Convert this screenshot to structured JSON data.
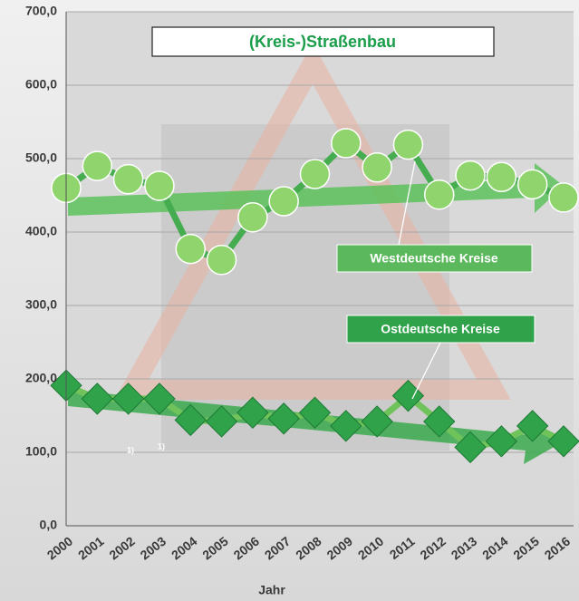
{
  "chart_data": {
    "type": "line",
    "title": "(Kreis-)Straßenbau",
    "x_label": "Jahr",
    "categories": [
      "2000",
      "2001",
      "2002",
      "2003",
      "2004",
      "2005",
      "2006",
      "2007",
      "2008",
      "2009",
      "2010",
      "2011",
      "2012",
      "2013",
      "2014",
      "2015",
      "2016"
    ],
    "series": [
      {
        "name": "Westdeutsche Kreise",
        "color": "#8fd46c",
        "line_color": "#45ad4f",
        "marker": "circle",
        "values": [
          460,
          490,
          472,
          463,
          377,
          362,
          420,
          442,
          479,
          521,
          488,
          519,
          451,
          477,
          475,
          465,
          447
        ]
      },
      {
        "name": "Ostdeutsche Kreise",
        "color": "#2fa24a",
        "line_color": "#6fc35a",
        "marker": "diamond",
        "values": [
          191,
          173,
          173,
          173,
          144,
          142,
          154,
          146,
          154,
          136,
          142,
          177,
          142,
          107,
          115,
          136,
          115
        ]
      }
    ],
    "ylim": [
      0,
      700
    ],
    "yticks": [
      {
        "value": 0,
        "label": "0,0"
      },
      {
        "value": 100,
        "label": "100,0"
      },
      {
        "value": 200,
        "label": "200,0"
      },
      {
        "value": 300,
        "label": "300,0"
      },
      {
        "value": 400,
        "label": "400,0"
      },
      {
        "value": 500,
        "label": "500,0"
      },
      {
        "value": 600,
        "label": "600,0"
      },
      {
        "value": 700,
        "label": "700,0"
      }
    ],
    "grid": true,
    "annotations": [
      "1)",
      "1)"
    ]
  }
}
